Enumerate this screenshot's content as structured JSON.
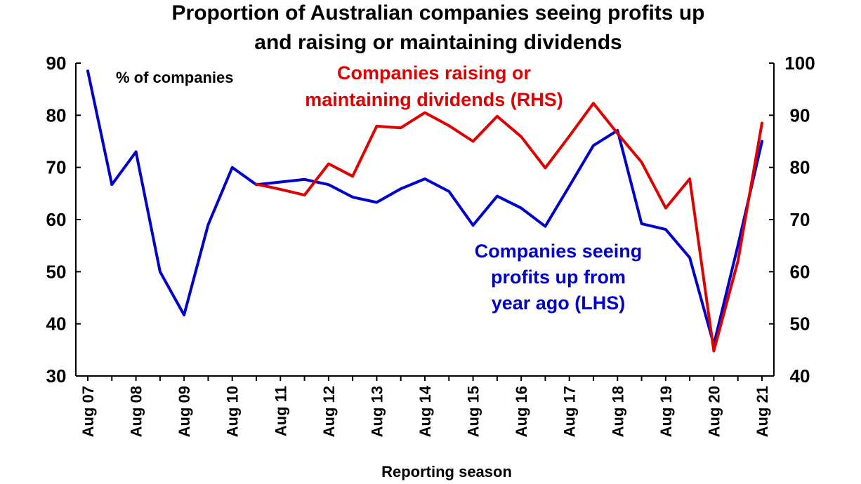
{
  "chart_data": {
    "type": "line",
    "title_lines": [
      "Proportion of Australian companies seeing profits up",
      "and raising or maintaining dividends"
    ],
    "xlabel": "Reporting season",
    "left_axis_label": "% of companies",
    "ylim_left": [
      30,
      90
    ],
    "ylim_right": [
      40,
      100
    ],
    "yticks_left": [
      30,
      40,
      50,
      60,
      70,
      80,
      90
    ],
    "yticks_right": [
      40,
      50,
      60,
      70,
      80,
      90,
      100
    ],
    "x_periods": [
      "Aug 07",
      "Feb 08",
      "Aug 08",
      "Feb 09",
      "Aug 09",
      "Feb 10",
      "Aug 10",
      "Feb 11",
      "Aug 11",
      "Feb 12",
      "Aug 12",
      "Feb 13",
      "Aug 13",
      "Feb 14",
      "Aug 14",
      "Feb 15",
      "Aug 15",
      "Feb 16",
      "Aug 16",
      "Feb 17",
      "Aug 17",
      "Feb 18",
      "Aug 18",
      "Feb 19",
      "Aug 19",
      "Feb 20",
      "Aug 20",
      "Feb 21",
      "Aug 21"
    ],
    "x_tick_labels": [
      "Aug 07",
      "Aug 08",
      "Aug 09",
      "Aug 10",
      "Aug 11",
      "Aug 12",
      "Aug 13",
      "Aug 14",
      "Aug 15",
      "Aug 16",
      "Aug 17",
      "Aug 18",
      "Aug 19",
      "Aug 20",
      "Aug 21"
    ],
    "grid": false,
    "series": [
      {
        "name": "Companies seeing profits up from year ago (LHS)",
        "label_lines": [
          "Companies seeing",
          "profits up from",
          "year ago (LHS)"
        ],
        "axis": "left",
        "color": "#0000cc",
        "start_index": 0,
        "values": [
          88.5,
          66.7,
          73.0,
          50.0,
          41.7,
          59.0,
          70.0,
          66.7,
          67.2,
          67.7,
          66.7,
          64.3,
          63.3,
          65.9,
          67.8,
          65.4,
          58.9,
          64.5,
          62.2,
          58.7,
          66.4,
          74.2,
          77.1,
          59.2,
          58.1,
          52.7,
          36.0,
          55.0,
          75.0
        ]
      },
      {
        "name": "Companies raising or maintaining dividends (RHS)",
        "label_lines": [
          "Companies raising or",
          "maintaining dividends (RHS)"
        ],
        "axis": "right",
        "color": "#e00000",
        "start_index": 7,
        "values": [
          76.8,
          75.8,
          74.7,
          80.7,
          78.3,
          87.9,
          87.6,
          90.5,
          88.0,
          85.0,
          89.8,
          85.9,
          79.9,
          86.0,
          92.3,
          86.5,
          81.0,
          72.2,
          77.8,
          44.8,
          62.0,
          88.5
        ]
      }
    ]
  }
}
